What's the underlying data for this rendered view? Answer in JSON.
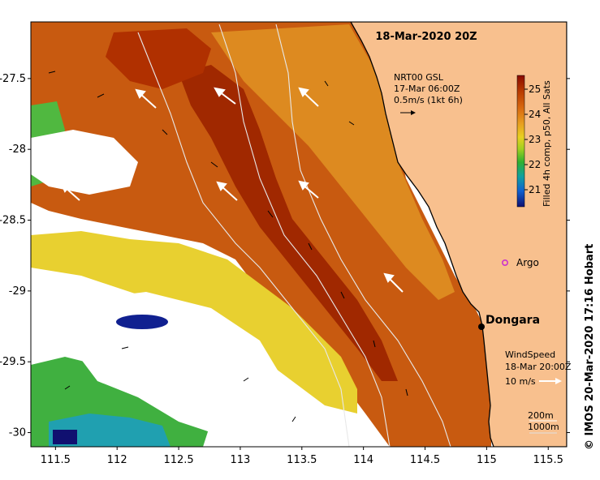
{
  "map": {
    "title": "18-Mar-2020 20Z",
    "lon_ticks": [
      "111.5",
      "112",
      "112.5",
      "113",
      "113.5",
      "114",
      "114.5",
      "115",
      "115.5"
    ],
    "lat_ticks": [
      "-27.5",
      "-28",
      "-28.5",
      "-29",
      "-29.5",
      "-30"
    ],
    "lon_range": [
      111.3,
      115.65
    ],
    "lat_range": [
      -30.1,
      -27.1
    ],
    "current_legend": {
      "line1": "NRT00 GSL",
      "line2": "17-Mar 06:00Z",
      "line3": "0.5m/s (1kt 6h)"
    },
    "wind_legend": {
      "line1": "WindSpeed",
      "line2": "18-Mar 20:00Z",
      "line3": "10 m/s"
    },
    "depth_legend": [
      "200m",
      "1000m"
    ],
    "argo_label": "Argo",
    "place_label": "Dongara",
    "colorbar": {
      "title": "Filled 4h comp, p50, All Sats",
      "ticks": [
        "25",
        "24",
        "23",
        "22",
        "21"
      ],
      "colors": [
        "#8a0a00",
        "#b83a00",
        "#d96a10",
        "#e8a020",
        "#e8d020",
        "#a0d020",
        "#30b030",
        "#10a0a0",
        "#1060d0",
        "#101070"
      ]
    },
    "credit": "© IMOS 20-Mar-2020 17:16 Hobart",
    "colors": {
      "land": "#f8c08e",
      "coast": "#000000",
      "argo": "#cc33cc"
    }
  }
}
